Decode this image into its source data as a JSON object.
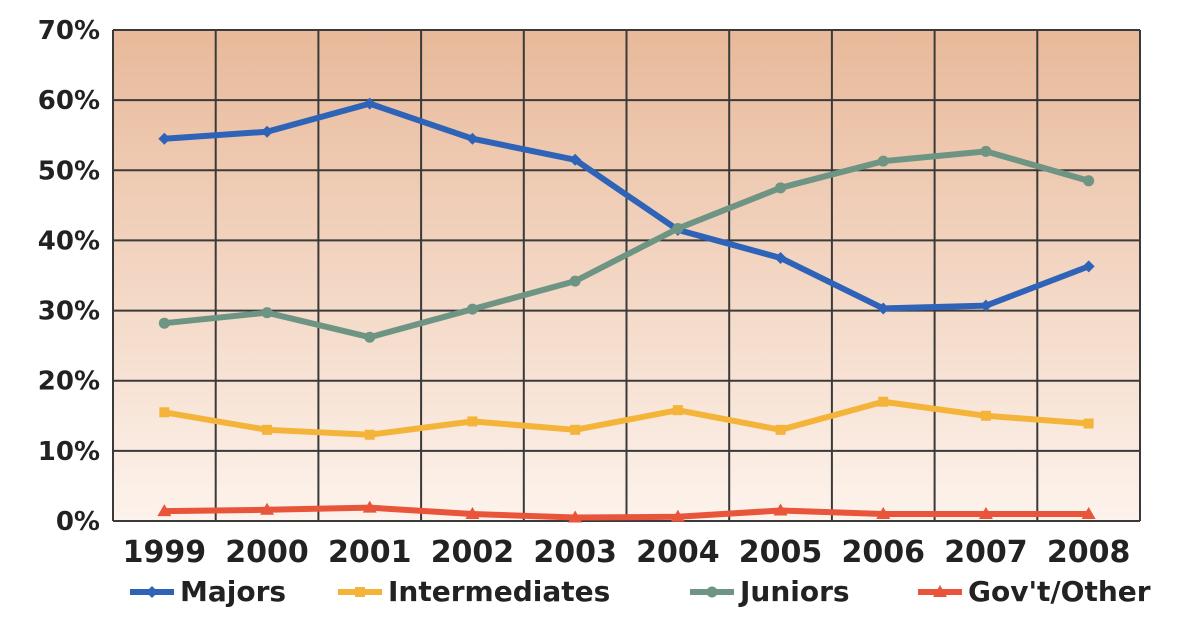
{
  "chart_data": {
    "type": "line",
    "categories": [
      "1999",
      "2000",
      "2001",
      "2002",
      "2003",
      "2004",
      "2005",
      "2006",
      "2007",
      "2008"
    ],
    "ylim": [
      0,
      70
    ],
    "yticks": [
      "0%",
      "10%",
      "20%",
      "30%",
      "40%",
      "50%",
      "60%",
      "70%"
    ],
    "grid": true,
    "legend_position": "bottom",
    "series": [
      {
        "name": "Majors",
        "color": "#2f63b8",
        "marker": "diamond",
        "values": [
          54.5,
          55.5,
          59.5,
          54.5,
          51.5,
          41.5,
          37.5,
          30.3,
          30.7,
          36.3
        ]
      },
      {
        "name": "Intermediates",
        "color": "#f4b43a",
        "marker": "square",
        "values": [
          15.5,
          13.0,
          12.3,
          14.2,
          13.0,
          15.8,
          13.0,
          17.0,
          15.0,
          13.9
        ]
      },
      {
        "name": "Juniors",
        "color": "#6e9483",
        "marker": "circle",
        "values": [
          28.2,
          29.7,
          26.2,
          30.2,
          34.2,
          41.7,
          47.5,
          51.3,
          52.7,
          48.5
        ]
      },
      {
        "name": "Gov't/Other",
        "color": "#e8553a",
        "marker": "triangle",
        "values": [
          1.4,
          1.6,
          1.9,
          1.0,
          0.5,
          0.6,
          1.5,
          1.0,
          1.0,
          1.0
        ]
      }
    ]
  }
}
